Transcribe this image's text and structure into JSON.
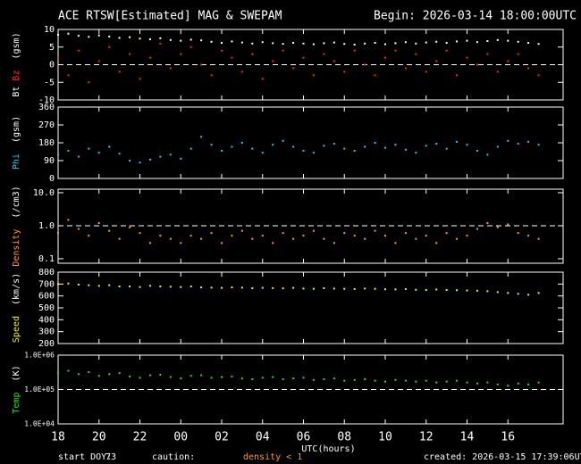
{
  "header": {
    "title": "ACE RTSW[Estimated] MAG & SWEPAM",
    "begin": "Begin: 2026-03-14 18:00:00UTC"
  },
  "footer": {
    "doy_label": "start DOY:",
    "doy": "73",
    "caution_label": "caution:",
    "caution": "density < 1",
    "created": "created: 2026-03-15 17:39:06UTC"
  },
  "chart_data": [
    {
      "type": "scatter",
      "ylabel_unit": "(gsm)",
      "ylim": [
        -10,
        10
      ],
      "yticks": [
        -10,
        -5,
        0,
        5,
        10
      ],
      "ref_line": 0,
      "xlim": [
        0,
        24.7
      ],
      "x": [
        0,
        0.5,
        1,
        1.5,
        2,
        2.5,
        3,
        3.5,
        4,
        4.5,
        5,
        5.5,
        6,
        6.5,
        7,
        7.5,
        8,
        8.5,
        9,
        9.5,
        10,
        10.5,
        11,
        11.5,
        12,
        12.5,
        13,
        13.5,
        14,
        14.5,
        15,
        15.5,
        16,
        16.5,
        17,
        17.5,
        18,
        18.5,
        19,
        19.5,
        20,
        20.5,
        21,
        21.5,
        22,
        22.5,
        23,
        23.5
      ],
      "series": [
        {
          "name": "Bt",
          "color": "#ffffff",
          "values": [
            8.5,
            8.8,
            8.2,
            7.9,
            8.3,
            8.0,
            7.6,
            7.8,
            7.4,
            7.2,
            7.5,
            7.0,
            6.8,
            7.1,
            6.9,
            6.5,
            6.2,
            6.6,
            6.3,
            6.0,
            6.4,
            6.1,
            5.9,
            6.2,
            6.0,
            5.8,
            6.1,
            6.3,
            5.9,
            5.7,
            6.0,
            6.2,
            5.8,
            6.1,
            6.4,
            6.0,
            6.3,
            6.5,
            6.2,
            6.6,
            6.8,
            6.4,
            6.7,
            7.0,
            6.8,
            6.5,
            6.2,
            5.9
          ]
        },
        {
          "name": "Bz",
          "color": "#ff2020",
          "values": [
            2,
            -3,
            4,
            -5,
            1,
            5,
            -2,
            3,
            -4,
            2,
            6,
            -1,
            3,
            5,
            0,
            -3,
            4,
            2,
            -2,
            3,
            -4,
            1,
            4,
            -1,
            2,
            -3,
            3,
            1,
            -2,
            4,
            0,
            -3,
            2,
            4,
            -1,
            3,
            -2,
            1,
            4,
            -3,
            2,
            0,
            3,
            -2,
            1,
            3,
            -1,
            -3
          ]
        }
      ]
    },
    {
      "type": "scatter",
      "ylabel_unit": "(gsm)",
      "ylim": [
        0,
        360
      ],
      "yticks": [
        0,
        90,
        180,
        270,
        360
      ],
      "xlim": [
        0,
        24.7
      ],
      "x": [
        0,
        0.5,
        1,
        1.5,
        2,
        2.5,
        3,
        3.5,
        4,
        4.5,
        5,
        5.5,
        6,
        6.5,
        7,
        7.5,
        8,
        8.5,
        9,
        9.5,
        10,
        10.5,
        11,
        11.5,
        12,
        12.5,
        13,
        13.5,
        14,
        14.5,
        15,
        15.5,
        16,
        16.5,
        17,
        17.5,
        18,
        18.5,
        19,
        19.5,
        20,
        20.5,
        21,
        21.5,
        22,
        22.5,
        23,
        23.5
      ],
      "series": [
        {
          "name": "Phi",
          "color": "#22c8e6",
          "values": [
            120,
            140,
            110,
            150,
            130,
            160,
            125,
            90,
            80,
            95,
            110,
            120,
            100,
            150,
            210,
            170,
            140,
            160,
            180,
            150,
            130,
            170,
            190,
            160,
            140,
            130,
            165,
            175,
            150,
            140,
            160,
            180,
            155,
            170,
            145,
            130,
            165,
            175,
            150,
            185,
            170,
            140,
            120,
            160,
            190,
            175,
            185,
            170
          ]
        }
      ]
    },
    {
      "type": "scatter",
      "ylabel_unit": "(/cm3)",
      "log": true,
      "ylim": [
        0.073,
        12.8
      ],
      "yticks": [
        0.1,
        {
          "value": 1,
          "label": "1.0"
        },
        {
          "value": 10,
          "label": "10.0"
        }
      ],
      "ref_line": 1,
      "xlim": [
        0,
        24.7
      ],
      "x": [
        0,
        0.5,
        1,
        1.5,
        2,
        2.5,
        3,
        3.5,
        4,
        4.5,
        5,
        5.5,
        6,
        6.5,
        7,
        7.5,
        8,
        8.5,
        9,
        9.5,
        10,
        10.5,
        11,
        11.5,
        12,
        12.5,
        13,
        13.5,
        14,
        14.5,
        15,
        15.5,
        16,
        16.5,
        17,
        17.5,
        18,
        18.5,
        19,
        19.5,
        20,
        20.5,
        21,
        21.5,
        22,
        22.5,
        23,
        23.5
      ],
      "series": [
        {
          "name": "Density",
          "color": "#ff9a1e",
          "values": [
            0.6,
            1.5,
            0.8,
            0.5,
            1.2,
            0.7,
            0.4,
            0.9,
            0.6,
            0.3,
            0.5,
            0.4,
            0.3,
            0.5,
            0.4,
            0.6,
            0.3,
            0.5,
            0.7,
            0.4,
            0.5,
            0.3,
            0.6,
            0.4,
            0.5,
            0.7,
            0.4,
            0.3,
            0.6,
            0.5,
            0.4,
            0.7,
            0.5,
            0.3,
            0.6,
            0.4,
            0.5,
            0.3,
            0.6,
            0.4,
            0.5,
            0.8,
            1.2,
            0.9,
            1.1,
            0.6,
            0.5,
            0.4
          ]
        }
      ]
    },
    {
      "type": "scatter",
      "ylabel_unit": "(km/s)",
      "ylim": [
        200,
        800
      ],
      "yticks": [
        200,
        300,
        400,
        500,
        600,
        700,
        800
      ],
      "xlim": [
        0,
        24.7
      ],
      "x": [
        0,
        0.5,
        1,
        1.5,
        2,
        2.5,
        3,
        3.5,
        4,
        4.5,
        5,
        5.5,
        6,
        6.5,
        7,
        7.5,
        8,
        8.5,
        9,
        9.5,
        10,
        10.5,
        11,
        11.5,
        12,
        12.5,
        13,
        13.5,
        14,
        14.5,
        15,
        15.5,
        16,
        16.5,
        17,
        17.5,
        18,
        18.5,
        19,
        19.5,
        20,
        20.5,
        21,
        21.5,
        22,
        22.5,
        23,
        23.5
      ],
      "series": [
        {
          "name": "Speed",
          "color": "#f0f020",
          "values": [
            700,
            705,
            695,
            690,
            685,
            690,
            680,
            680,
            675,
            685,
            680,
            678,
            675,
            680,
            672,
            670,
            668,
            672,
            670,
            665,
            668,
            666,
            664,
            668,
            662,
            660,
            665,
            662,
            660,
            658,
            662,
            660,
            656,
            655,
            658,
            652,
            650,
            654,
            650,
            648,
            646,
            644,
            640,
            632,
            625,
            618,
            610,
            625
          ]
        }
      ]
    },
    {
      "type": "scatter",
      "ylabel_unit": "(K)",
      "log": true,
      "ylim": [
        10000,
        1000000
      ],
      "yticks": [
        {
          "value": 10000,
          "label": "1.0E+04"
        },
        {
          "value": 100000,
          "label": "1.0E+05"
        },
        {
          "value": 1000000,
          "label": "1.0E+06"
        }
      ],
      "ref_line": 100000,
      "xlim": [
        0,
        24.7
      ],
      "xlabel": "UTC(hours)",
      "xticks": [
        {
          "value": 0,
          "label": "18"
        },
        {
          "value": 2,
          "label": "20"
        },
        {
          "value": 4,
          "label": "22"
        },
        {
          "value": 6,
          "label": "00"
        },
        {
          "value": 8,
          "label": "02"
        },
        {
          "value": 10,
          "label": "04"
        },
        {
          "value": 12,
          "label": "06"
        },
        {
          "value": 14,
          "label": "08"
        },
        {
          "value": 16,
          "label": "10"
        },
        {
          "value": 18,
          "label": "12"
        },
        {
          "value": 20,
          "label": "14"
        },
        {
          "value": 22,
          "label": "16"
        }
      ],
      "x": [
        0,
        0.5,
        1,
        1.5,
        2,
        2.5,
        3,
        3.5,
        4,
        4.5,
        5,
        5.5,
        6,
        6.5,
        7,
        7.5,
        8,
        8.5,
        9,
        9.5,
        10,
        10.5,
        11,
        11.5,
        12,
        12.5,
        13,
        13.5,
        14,
        14.5,
        15,
        15.5,
        16,
        16.5,
        17,
        17.5,
        18,
        18.5,
        19,
        19.5,
        20,
        20.5,
        21,
        21.5,
        22,
        22.5,
        23,
        23.5
      ],
      "series": [
        {
          "name": "Temp",
          "color": "#22dd22",
          "values": [
            300000,
            350000,
            280000,
            320000,
            250000,
            280000,
            300000,
            240000,
            220000,
            260000,
            270000,
            230000,
            210000,
            250000,
            260000,
            220000,
            230000,
            240000,
            210000,
            200000,
            220000,
            230000,
            200000,
            210000,
            220000,
            190000,
            200000,
            210000,
            180000,
            190000,
            200000,
            180000,
            170000,
            190000,
            180000,
            170000,
            180000,
            160000,
            170000,
            180000,
            160000,
            150000,
            160000,
            140000,
            130000,
            150000,
            140000,
            160000
          ]
        }
      ]
    }
  ]
}
